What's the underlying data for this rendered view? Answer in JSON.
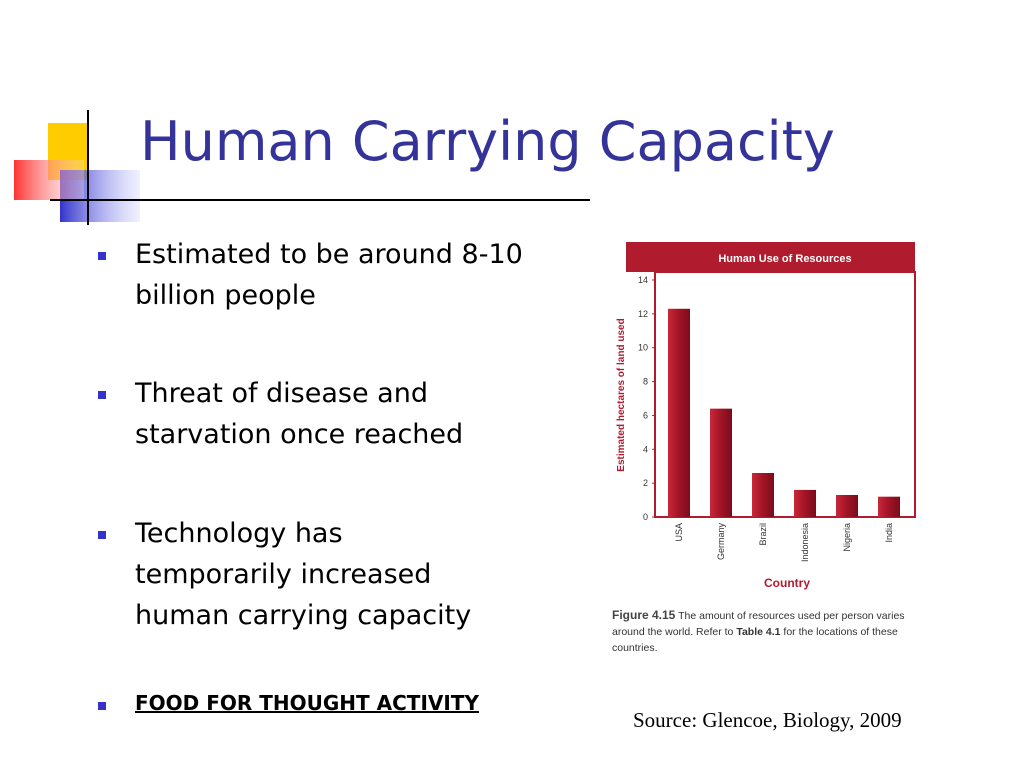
{
  "title": "Human Carrying Capacity",
  "bullets": [
    "Estimated to be around 8-10 billion people",
    "Threat of disease and starvation once reached",
    "Technology has temporarily increased human carrying capacity"
  ],
  "link": "FOOD FOR THOUGHT ACTIVITY",
  "chart_data": {
    "type": "bar",
    "title": "Human Use of Resources",
    "x_label": "Country",
    "y_label": "Estimated hectares of land used",
    "categories": [
      "USA",
      "Germany",
      "Brazil",
      "Indonesia",
      "Nigeria",
      "India"
    ],
    "values": [
      12.3,
      6.4,
      2.6,
      1.6,
      1.3,
      1.2
    ],
    "color": "#b01c2e",
    "ylim": [
      0,
      14
    ],
    "yticks": [
      0,
      2,
      4,
      6,
      8,
      10,
      12,
      14
    ],
    "grid": false
  },
  "caption": {
    "figure": "Figure 4.15",
    "text1": "The amount of resources used per person varies around the world. Refer to",
    "table": "Table 4.1",
    "text2": "for the locations of these countries."
  },
  "source": "Source: Glencoe, Biology, 2009"
}
